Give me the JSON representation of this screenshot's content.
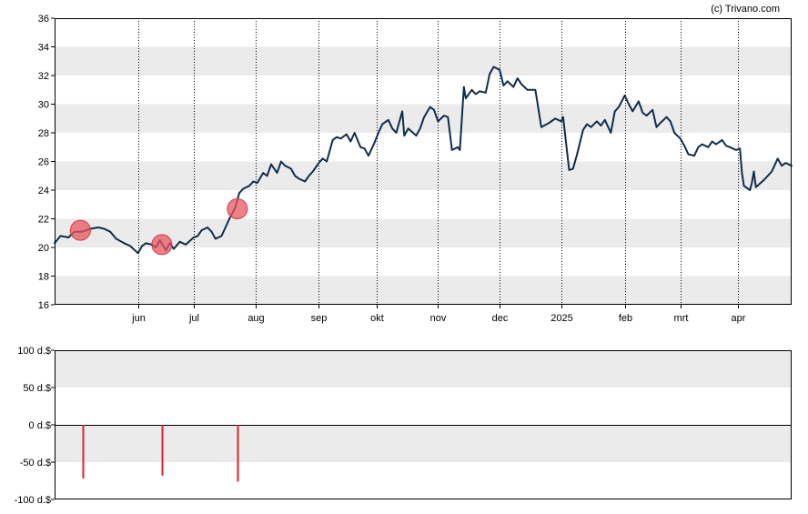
{
  "credit": "(c) Trivano.com",
  "colors": {
    "price_line": "#0f2d4b",
    "band": "#ebebeb",
    "grid_dotted": "#000000",
    "marker_fill": "#e8555f",
    "marker_stroke": "#d03a46",
    "bar": "#e0202a",
    "axis": "#000000"
  },
  "chart_data": [
    {
      "type": "line",
      "title": "",
      "ylabel": "",
      "ylim": [
        16,
        36
      ],
      "yticks": [
        {
          "value": 16,
          "label": "16"
        },
        {
          "value": 18,
          "label": "18"
        },
        {
          "value": 20,
          "label": "20"
        },
        {
          "value": 22,
          "label": "22"
        },
        {
          "value": 24,
          "label": "24"
        },
        {
          "value": 26,
          "label": "26"
        },
        {
          "value": 28,
          "label": "28"
        },
        {
          "value": 30,
          "label": "30"
        },
        {
          "value": 32,
          "label": "32"
        },
        {
          "value": 34,
          "label": "34"
        },
        {
          "value": 36,
          "label": "36"
        }
      ],
      "xlim": [
        "2024-04-22",
        "2025-04-28"
      ],
      "xticks": [
        {
          "date": "2024-06-03",
          "label": "jun"
        },
        {
          "date": "2024-07-01",
          "label": "jul"
        },
        {
          "date": "2024-08-01",
          "label": "aug"
        },
        {
          "date": "2024-09-02",
          "label": "sep"
        },
        {
          "date": "2024-10-01",
          "label": "okt"
        },
        {
          "date": "2024-11-01",
          "label": "nov"
        },
        {
          "date": "2024-12-02",
          "label": "dec"
        },
        {
          "date": "2025-01-02",
          "label": "2025"
        },
        {
          "date": "2025-02-03",
          "label": "feb"
        },
        {
          "date": "2025-03-03",
          "label": "mrt"
        },
        {
          "date": "2025-04-01",
          "label": "apr"
        }
      ],
      "grid": "vertical dotted at month ticks, alternating horizontal bands",
      "series": [
        {
          "name": "",
          "points": [
            [
              "2024-04-22",
              20.3
            ],
            [
              "2024-04-25",
              20.8
            ],
            [
              "2024-04-29",
              20.7
            ],
            [
              "2024-05-02",
              21.1
            ],
            [
              "2024-05-06",
              21.1
            ],
            [
              "2024-05-10",
              21.3
            ],
            [
              "2024-05-14",
              21.4
            ],
            [
              "2024-05-17",
              21.3
            ],
            [
              "2024-05-20",
              21.1
            ],
            [
              "2024-05-23",
              20.6
            ],
            [
              "2024-05-27",
              20.3
            ],
            [
              "2024-05-30",
              20.1
            ],
            [
              "2024-06-03",
              19.6
            ],
            [
              "2024-06-05",
              20.1
            ],
            [
              "2024-06-07",
              20.3
            ],
            [
              "2024-06-10",
              20.2
            ],
            [
              "2024-06-12",
              20.0
            ],
            [
              "2024-06-14",
              20.5
            ],
            [
              "2024-06-17",
              19.8
            ],
            [
              "2024-06-19",
              20.3
            ],
            [
              "2024-06-21",
              19.9
            ],
            [
              "2024-06-24",
              20.4
            ],
            [
              "2024-06-27",
              20.2
            ],
            [
              "2024-07-01",
              20.7
            ],
            [
              "2024-07-03",
              20.8
            ],
            [
              "2024-07-05",
              21.2
            ],
            [
              "2024-07-08",
              21.4
            ],
            [
              "2024-07-10",
              21.1
            ],
            [
              "2024-07-12",
              20.6
            ],
            [
              "2024-07-15",
              20.8
            ],
            [
              "2024-07-17",
              21.4
            ],
            [
              "2024-07-19",
              22.0
            ],
            [
              "2024-07-22",
              22.8
            ],
            [
              "2024-07-24",
              23.8
            ],
            [
              "2024-07-26",
              24.1
            ],
            [
              "2024-07-29",
              24.3
            ],
            [
              "2024-07-31",
              24.6
            ],
            [
              "2024-08-02",
              24.5
            ],
            [
              "2024-08-05",
              25.2
            ],
            [
              "2024-08-07",
              25.0
            ],
            [
              "2024-08-09",
              25.8
            ],
            [
              "2024-08-12",
              25.2
            ],
            [
              "2024-08-14",
              26.0
            ],
            [
              "2024-08-16",
              25.7
            ],
            [
              "2024-08-19",
              25.5
            ],
            [
              "2024-08-21",
              25.0
            ],
            [
              "2024-08-23",
              24.8
            ],
            [
              "2024-08-26",
              24.6
            ],
            [
              "2024-08-28",
              25.0
            ],
            [
              "2024-08-30",
              25.3
            ],
            [
              "2024-09-02",
              25.9
            ],
            [
              "2024-09-04",
              26.2
            ],
            [
              "2024-09-06",
              26.0
            ],
            [
              "2024-09-09",
              27.5
            ],
            [
              "2024-09-11",
              27.7
            ],
            [
              "2024-09-13",
              27.6
            ],
            [
              "2024-09-16",
              27.9
            ],
            [
              "2024-09-18",
              27.4
            ],
            [
              "2024-09-20",
              28.0
            ],
            [
              "2024-09-23",
              27.0
            ],
            [
              "2024-09-25",
              26.9
            ],
            [
              "2024-09-27",
              26.4
            ],
            [
              "2024-09-30",
              27.3
            ],
            [
              "2024-10-02",
              28.0
            ],
            [
              "2024-10-04",
              28.6
            ],
            [
              "2024-10-07",
              28.9
            ],
            [
              "2024-10-09",
              28.3
            ],
            [
              "2024-10-11",
              28.0
            ],
            [
              "2024-10-14",
              29.5
            ],
            [
              "2024-10-15",
              27.8
            ],
            [
              "2024-10-17",
              28.3
            ],
            [
              "2024-10-21",
              27.8
            ],
            [
              "2024-10-23",
              28.3
            ],
            [
              "2024-10-25",
              29.1
            ],
            [
              "2024-10-28",
              29.8
            ],
            [
              "2024-10-30",
              29.6
            ],
            [
              "2024-11-01",
              28.8
            ],
            [
              "2024-11-04",
              29.2
            ],
            [
              "2024-11-06",
              29.1
            ],
            [
              "2024-11-08",
              26.8
            ],
            [
              "2024-11-11",
              27.0
            ],
            [
              "2024-11-12",
              26.8
            ],
            [
              "2024-11-14",
              31.2
            ],
            [
              "2024-11-15",
              30.4
            ],
            [
              "2024-11-18",
              31.0
            ],
            [
              "2024-11-20",
              30.7
            ],
            [
              "2024-11-22",
              30.9
            ],
            [
              "2024-11-25",
              30.8
            ],
            [
              "2024-11-27",
              32.1
            ],
            [
              "2024-11-29",
              32.6
            ],
            [
              "2024-12-02",
              32.4
            ],
            [
              "2024-12-04",
              31.3
            ],
            [
              "2024-12-06",
              31.6
            ],
            [
              "2024-12-09",
              31.2
            ],
            [
              "2024-12-11",
              31.8
            ],
            [
              "2024-12-13",
              31.4
            ],
            [
              "2024-12-16",
              31.0
            ],
            [
              "2024-12-18",
              31.0
            ],
            [
              "2024-12-20",
              31.0
            ],
            [
              "2024-12-23",
              28.4
            ],
            [
              "2024-12-27",
              28.7
            ],
            [
              "2024-12-30",
              29.0
            ],
            [
              "2025-01-02",
              28.8
            ],
            [
              "2025-01-03",
              29.1
            ],
            [
              "2025-01-06",
              25.4
            ],
            [
              "2025-01-08",
              25.5
            ],
            [
              "2025-01-10",
              26.5
            ],
            [
              "2025-01-13",
              28.2
            ],
            [
              "2025-01-15",
              28.6
            ],
            [
              "2025-01-17",
              28.4
            ],
            [
              "2025-01-20",
              28.8
            ],
            [
              "2025-01-22",
              28.5
            ],
            [
              "2025-01-24",
              28.9
            ],
            [
              "2025-01-27",
              28.0
            ],
            [
              "2025-01-29",
              29.5
            ],
            [
              "2025-01-31",
              29.8
            ],
            [
              "2025-02-03",
              30.6
            ],
            [
              "2025-02-05",
              30.0
            ],
            [
              "2025-02-07",
              29.5
            ],
            [
              "2025-02-10",
              30.2
            ],
            [
              "2025-02-12",
              29.4
            ],
            [
              "2025-02-14",
              29.2
            ],
            [
              "2025-02-17",
              29.6
            ],
            [
              "2025-02-19",
              28.4
            ],
            [
              "2025-02-21",
              28.7
            ],
            [
              "2025-02-24",
              29.1
            ],
            [
              "2025-02-26",
              28.8
            ],
            [
              "2025-02-28",
              28.0
            ],
            [
              "2025-03-03",
              27.6
            ],
            [
              "2025-03-05",
              27.1
            ],
            [
              "2025-03-07",
              26.5
            ],
            [
              "2025-03-10",
              26.4
            ],
            [
              "2025-03-12",
              27.0
            ],
            [
              "2025-03-14",
              27.2
            ],
            [
              "2025-03-17",
              27.0
            ],
            [
              "2025-03-19",
              27.4
            ],
            [
              "2025-03-21",
              27.2
            ],
            [
              "2025-03-24",
              27.5
            ],
            [
              "2025-03-26",
              27.1
            ],
            [
              "2025-03-28",
              27.0
            ],
            [
              "2025-03-31",
              26.8
            ],
            [
              "2025-04-02",
              26.9
            ],
            [
              "2025-04-03",
              25.2
            ],
            [
              "2025-04-04",
              24.3
            ],
            [
              "2025-04-07",
              24.0
            ],
            [
              "2025-04-08",
              24.5
            ],
            [
              "2025-04-09",
              25.3
            ],
            [
              "2025-04-10",
              24.2
            ],
            [
              "2025-04-14",
              24.7
            ],
            [
              "2025-04-16",
              25.0
            ],
            [
              "2025-04-18",
              25.3
            ],
            [
              "2025-04-21",
              26.2
            ],
            [
              "2025-04-23",
              25.7
            ],
            [
              "2025-04-25",
              25.9
            ],
            [
              "2025-04-28",
              25.7
            ]
          ]
        }
      ],
      "markers": [
        {
          "date": "2024-05-05",
          "value": 21.2
        },
        {
          "date": "2024-06-15",
          "value": 20.2
        },
        {
          "date": "2024-07-23",
          "value": 22.7
        }
      ]
    },
    {
      "type": "bar",
      "title": "",
      "ylabel": "",
      "ylim": [
        -100,
        100
      ],
      "yticks": [
        {
          "value": 100,
          "label": "100 d.$"
        },
        {
          "value": 50,
          "label": "50 d.$"
        },
        {
          "value": 0,
          "label": "0 d.$"
        },
        {
          "value": -50,
          "label": "-50 d.$"
        },
        {
          "value": -100,
          "label": "-100 d.$"
        }
      ],
      "xlim": [
        "2024-04-22",
        "2025-04-28"
      ],
      "series": [
        {
          "name": "",
          "points": [
            [
              "2024-05-06",
              -72
            ],
            [
              "2024-06-15",
              -68
            ],
            [
              "2024-07-23",
              -76
            ]
          ]
        }
      ]
    }
  ]
}
